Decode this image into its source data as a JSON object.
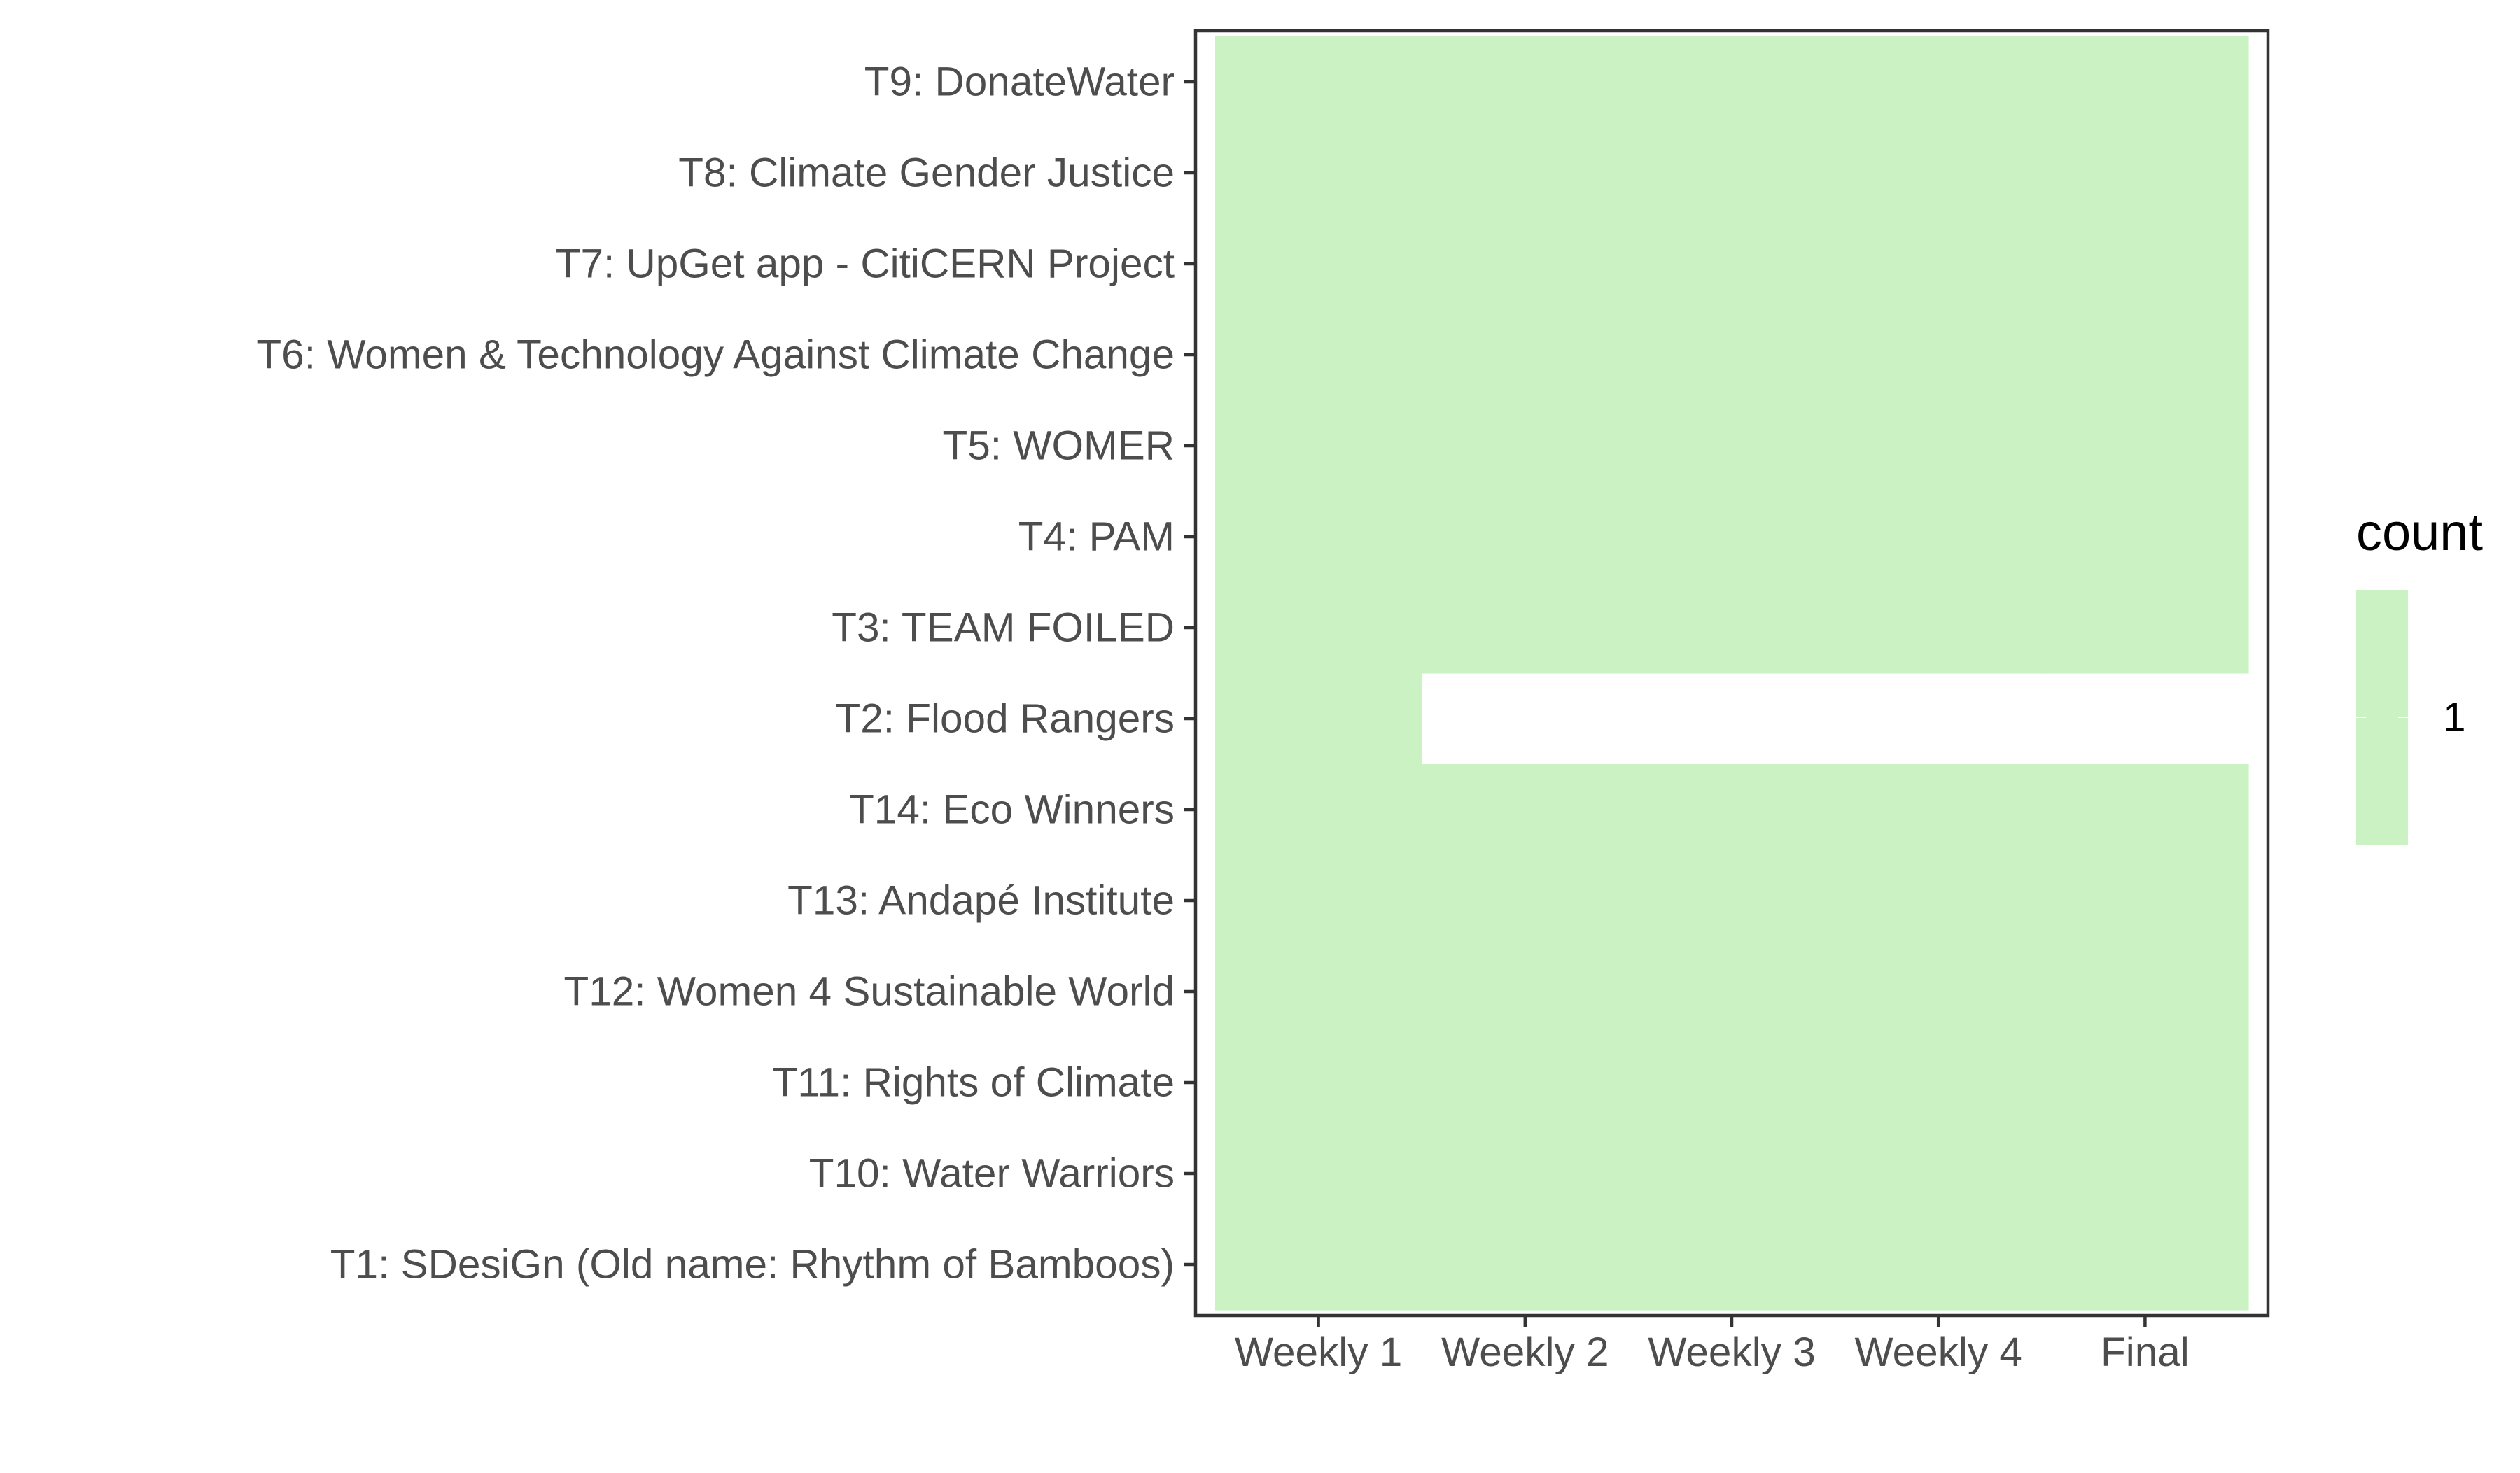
{
  "chart_data": {
    "type": "heatmap",
    "title": "",
    "xlabel": "",
    "ylabel": "",
    "x_categories": [
      "Weekly 1",
      "Weekly 2",
      "Weekly 3",
      "Weekly 4",
      "Final"
    ],
    "y_categories": [
      "T9: DonateWater",
      "T8: Climate Gender Justice",
      "T7: UpGet app - CitiCERN Project",
      "T6: Women & Technology Against Climate Change",
      "T5: WOMER",
      "T4: PAM",
      "T3: TEAM FOILED",
      "T2: Flood Rangers",
      "T14: Eco Winners",
      "T13: Andapé Institute",
      "T12: Women 4 Sustainable World",
      "T11: Rights of Climate",
      "T10: Water Warriors",
      "T1: SDesiGn (Old name: Rhythm of Bamboos)"
    ],
    "cells": [
      {
        "team": "T9: DonateWater",
        "weeks": [
          "Weekly 1",
          "Weekly 2",
          "Weekly 3",
          "Weekly 4",
          "Final"
        ],
        "count": 1
      },
      {
        "team": "T8: Climate Gender Justice",
        "weeks": [
          "Weekly 1",
          "Weekly 2",
          "Weekly 3",
          "Weekly 4",
          "Final"
        ],
        "count": 1
      },
      {
        "team": "T7: UpGet app - CitiCERN Project",
        "weeks": [
          "Weekly 1",
          "Weekly 2",
          "Weekly 3",
          "Weekly 4",
          "Final"
        ],
        "count": 1
      },
      {
        "team": "T6: Women & Technology Against Climate Change",
        "weeks": [
          "Weekly 1",
          "Weekly 2",
          "Weekly 3",
          "Weekly 4",
          "Final"
        ],
        "count": 1
      },
      {
        "team": "T5: WOMER",
        "weeks": [
          "Weekly 1",
          "Weekly 2",
          "Weekly 3",
          "Weekly 4",
          "Final"
        ],
        "count": 1
      },
      {
        "team": "T4: PAM",
        "weeks": [
          "Weekly 1",
          "Weekly 2",
          "Weekly 3",
          "Weekly 4",
          "Final"
        ],
        "count": 1
      },
      {
        "team": "T3: TEAM FOILED",
        "weeks": [
          "Weekly 1",
          "Weekly 2",
          "Weekly 3",
          "Weekly 4",
          "Final"
        ],
        "count": 1
      },
      {
        "team": "T2: Flood Rangers",
        "weeks": [
          "Weekly 1"
        ],
        "count": 1
      },
      {
        "team": "T14: Eco Winners",
        "weeks": [
          "Weekly 1",
          "Weekly 2",
          "Weekly 3",
          "Weekly 4",
          "Final"
        ],
        "count": 1
      },
      {
        "team": "T13: Andapé Institute",
        "weeks": [
          "Weekly 1",
          "Weekly 2",
          "Weekly 3",
          "Weekly 4",
          "Final"
        ],
        "count": 1
      },
      {
        "team": "T12: Women 4 Sustainable World",
        "weeks": [
          "Weekly 1",
          "Weekly 2",
          "Weekly 3",
          "Weekly 4",
          "Final"
        ],
        "count": 1
      },
      {
        "team": "T11: Rights of Climate",
        "weeks": [
          "Weekly 1",
          "Weekly 2",
          "Weekly 3",
          "Weekly 4",
          "Final"
        ],
        "count": 1
      },
      {
        "team": "T10: Water Warriors",
        "weeks": [
          "Weekly 1",
          "Weekly 2",
          "Weekly 3",
          "Weekly 4",
          "Final"
        ],
        "count": 1
      },
      {
        "team": "T1: SDesiGn (Old name: Rhythm of Bamboos)",
        "weeks": [
          "Weekly 1",
          "Weekly 2",
          "Weekly 3",
          "Weekly 4",
          "Final"
        ],
        "count": 1
      }
    ],
    "legend": {
      "title": "count",
      "entries": [
        "1"
      ],
      "placement": "right"
    },
    "grid": false
  },
  "colors": {
    "fill": "#cbf2c3",
    "panel_border": "#333333",
    "axis_text": "#4d4d4d",
    "legend_text": "#000000",
    "tick": "#333333",
    "legend_tick": "#ffffff"
  }
}
